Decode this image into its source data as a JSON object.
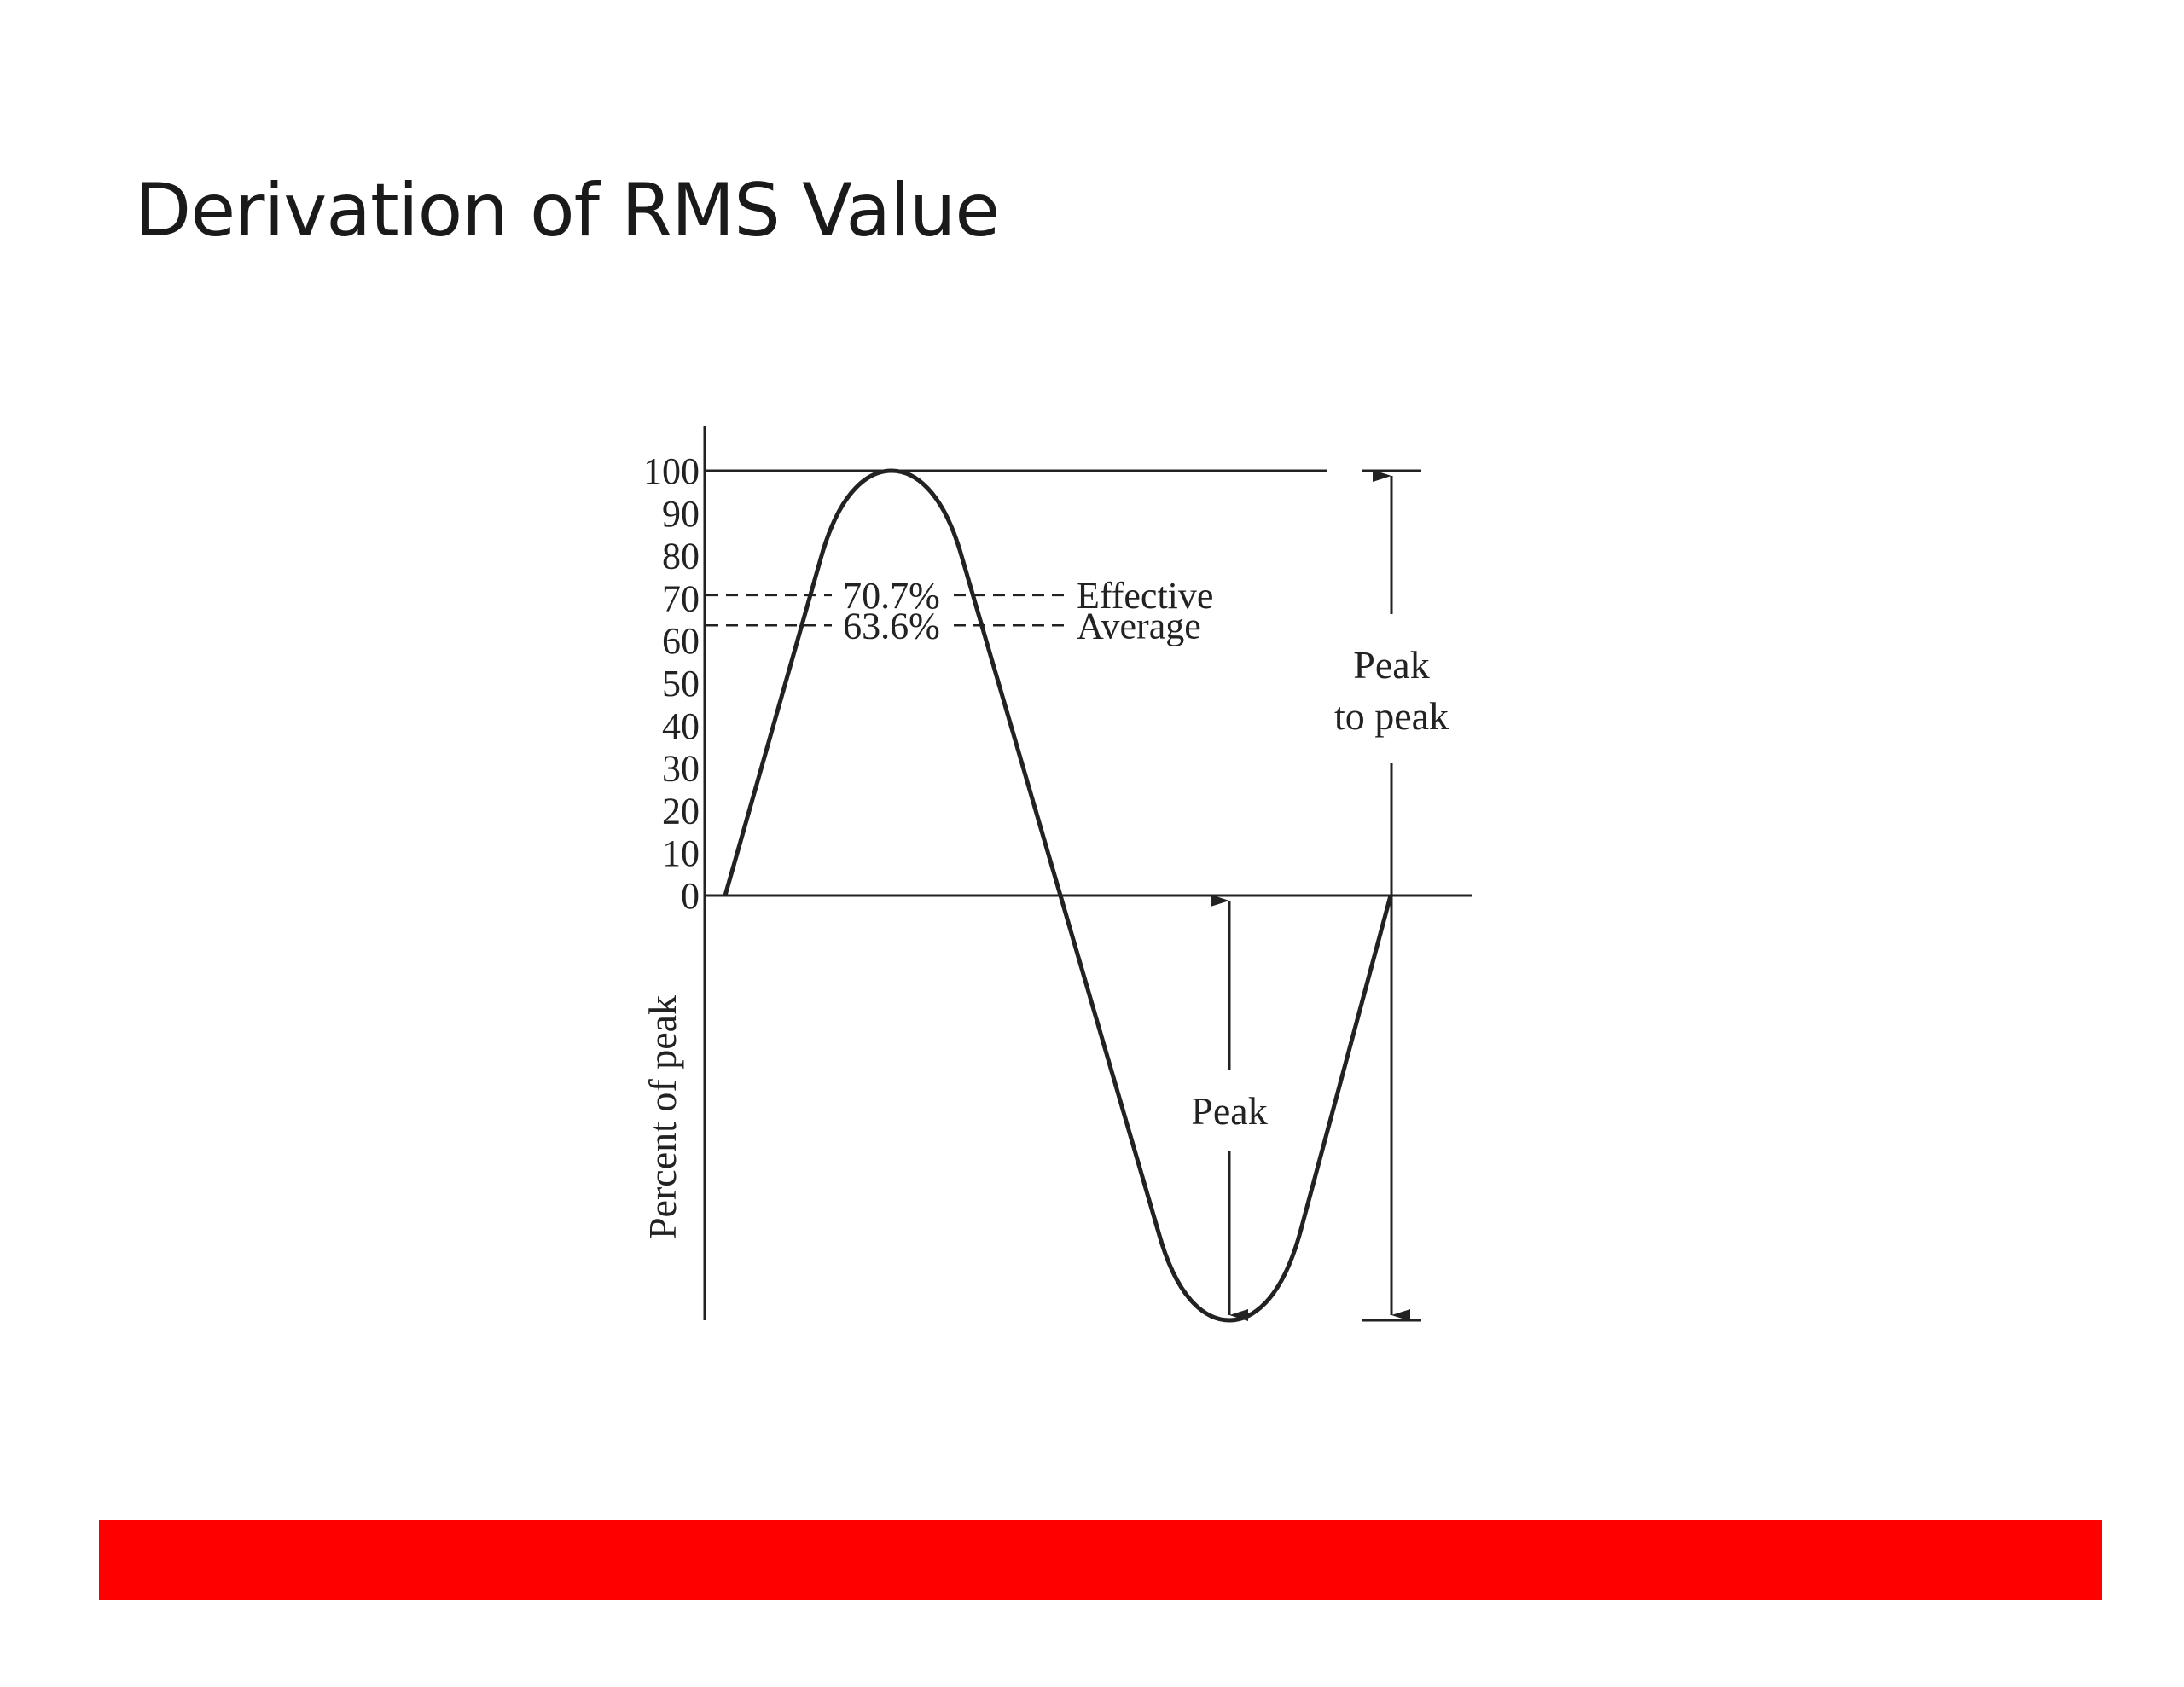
{
  "slide": {
    "title": "Derivation of RMS Value"
  },
  "diagram": {
    "y_axis_label": "Percent of peak",
    "y_ticks": [
      "100",
      "90",
      "80",
      "70",
      "60",
      "50",
      "40",
      "30",
      "20",
      "10",
      "0"
    ],
    "reference_lines": [
      {
        "value": 70.7,
        "percent_label": "70.7%",
        "name": "Effective"
      },
      {
        "value": 63.6,
        "percent_label": "63.6%",
        "name": "Average"
      }
    ],
    "annotations": {
      "peak_to_peak_line1": "Peak",
      "peak_to_peak_line2": "to peak",
      "peak": "Peak"
    }
  },
  "colors": {
    "footer_bar": "#ff0000",
    "ink": "#222222"
  }
}
